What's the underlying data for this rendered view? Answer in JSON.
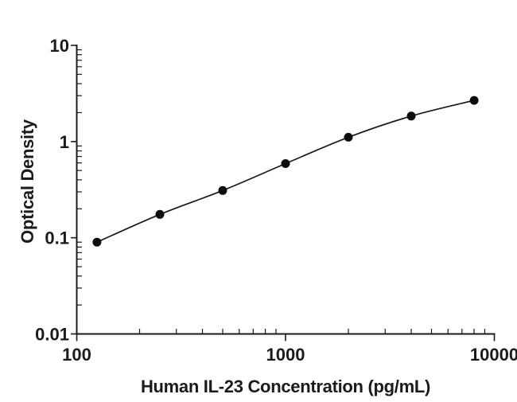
{
  "figure": {
    "background": "#ffffff",
    "ink_color": "#1c1a1b",
    "marker_color": "#0d0d0d",
    "line_color": "#1a1a1a"
  },
  "chart_data": {
    "type": "scatter",
    "title": "",
    "xlabel": "Human IL-23 Concentration (pg/mL)",
    "ylabel": "Optical Density",
    "xscale": "log",
    "yscale": "log",
    "xlim": [
      100,
      10000
    ],
    "ylim": [
      0.01,
      10
    ],
    "grid": false,
    "legend": null,
    "connect": "smooth-line",
    "marker": "filled-circle",
    "x": [
      125,
      250,
      500,
      1000,
      2000,
      4000,
      8000
    ],
    "y": [
      0.09,
      0.175,
      0.31,
      0.59,
      1.11,
      1.84,
      2.68
    ],
    "x_major_ticks": [
      100,
      1000,
      10000
    ],
    "x_tick_labels": [
      "100",
      "1000",
      "10000"
    ],
    "y_major_ticks": [
      0.01,
      0.1,
      1,
      10
    ],
    "y_tick_labels": [
      "0.01",
      "0.1",
      "1",
      "10"
    ],
    "minor_ticks": "log-2-to-9-inward",
    "major_ticks": "outward"
  }
}
